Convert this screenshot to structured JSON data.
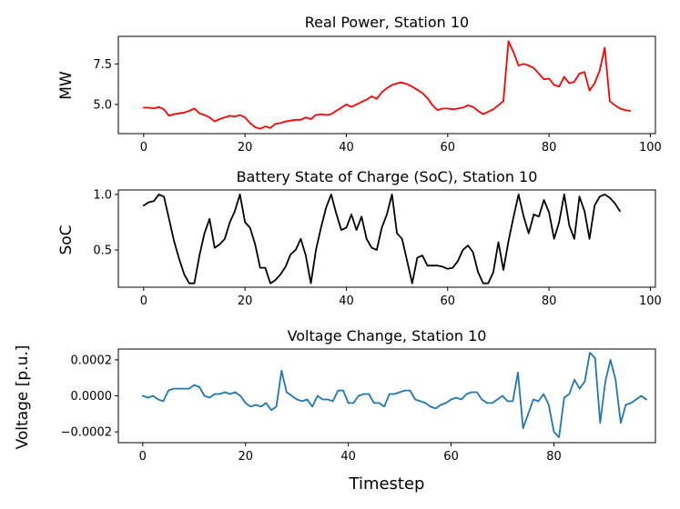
{
  "chart_data": [
    {
      "type": "line",
      "title": "Real Power, Station 10",
      "xlabel": "",
      "ylabel": "MW",
      "xlim": [
        -5,
        101
      ],
      "ylim": [
        3.2,
        9.2
      ],
      "xticks": [
        0,
        20,
        40,
        60,
        80,
        100
      ],
      "xtick_labels": [
        "0",
        "20",
        "40",
        "60",
        "80",
        "100"
      ],
      "yticks": [
        5.0,
        7.5
      ],
      "ytick_labels": [
        "5.0",
        "7.5"
      ],
      "grid": false,
      "color": "#ff0000",
      "x_start": 0,
      "y": [
        4.8,
        4.8,
        4.75,
        4.85,
        4.7,
        4.3,
        4.4,
        4.45,
        4.5,
        4.6,
        4.75,
        4.45,
        4.35,
        4.2,
        3.95,
        4.1,
        4.2,
        4.3,
        4.25,
        4.35,
        4.2,
        3.85,
        3.6,
        3.5,
        3.65,
        3.55,
        3.8,
        3.85,
        3.95,
        4.0,
        4.05,
        4.05,
        4.2,
        4.1,
        4.35,
        4.4,
        4.35,
        4.4,
        4.6,
        4.8,
        5.0,
        4.85,
        5.0,
        5.15,
        5.3,
        5.5,
        5.35,
        5.75,
        6.0,
        6.2,
        6.3,
        6.35,
        6.25,
        6.1,
        5.9,
        5.7,
        5.4,
        4.95,
        4.65,
        4.75,
        4.75,
        4.7,
        4.75,
        4.8,
        4.95,
        4.85,
        4.6,
        4.4,
        4.55,
        4.7,
        4.95,
        5.2,
        8.9,
        8.2,
        7.4,
        7.5,
        7.4,
        7.25,
        6.9,
        6.55,
        6.6,
        6.2,
        6.1,
        6.7,
        6.3,
        6.4,
        6.9,
        7.0,
        5.85,
        6.3,
        7.1,
        8.5,
        5.2,
        4.95,
        4.75,
        4.65,
        4.6
      ]
    },
    {
      "type": "line",
      "title": "Battery State of Charge (SoC), Station 10",
      "xlabel": "",
      "ylabel": "SoC",
      "xlim": [
        -5,
        101
      ],
      "ylim": [
        0.165,
        1.04
      ],
      "xticks": [
        0,
        20,
        40,
        60,
        80,
        100
      ],
      "xtick_labels": [
        "0",
        "20",
        "40",
        "60",
        "80",
        "100"
      ],
      "yticks": [
        0.5,
        1.0
      ],
      "ytick_labels": [
        "0.5",
        "1.0"
      ],
      "grid": false,
      "color": "#000000",
      "x_start": 0,
      "y": [
        0.9,
        0.93,
        0.94,
        1.0,
        0.98,
        0.78,
        0.58,
        0.42,
        0.28,
        0.2,
        0.2,
        0.45,
        0.65,
        0.78,
        0.52,
        0.55,
        0.6,
        0.75,
        0.85,
        1.0,
        0.75,
        0.7,
        0.55,
        0.34,
        0.34,
        0.2,
        0.23,
        0.28,
        0.35,
        0.46,
        0.5,
        0.6,
        0.45,
        0.2,
        0.5,
        0.7,
        0.88,
        1.0,
        0.83,
        0.68,
        0.7,
        0.82,
        0.68,
        0.8,
        0.6,
        0.52,
        0.5,
        0.7,
        0.82,
        1.0,
        0.65,
        0.6,
        0.4,
        0.2,
        0.43,
        0.45,
        0.36,
        0.36,
        0.36,
        0.35,
        0.33,
        0.34,
        0.4,
        0.5,
        0.54,
        0.48,
        0.3,
        0.2,
        0.2,
        0.3,
        0.57,
        0.32,
        0.58,
        0.8,
        1.0,
        0.8,
        0.65,
        0.82,
        0.8,
        0.95,
        0.84,
        0.6,
        0.75,
        1.0,
        0.72,
        0.6,
        0.98,
        0.85,
        0.6,
        0.9,
        0.98,
        1.0,
        0.97,
        0.92,
        0.85
      ]
    },
    {
      "type": "line",
      "title": "Voltage Change, Station 10",
      "xlabel": "Timestep",
      "ylabel": "Voltage [p.u.]",
      "xlim": [
        -4.75,
        99.75
      ],
      "ylim": [
        -0.00026,
        0.00026
      ],
      "xticks": [
        0,
        20,
        40,
        60,
        80
      ],
      "xtick_labels": [
        "0",
        "20",
        "40",
        "60",
        "80"
      ],
      "yticks": [
        -0.0002,
        0.0,
        0.0002
      ],
      "ytick_labels": [
        "−0.0002",
        "0.0000",
        "0.0002"
      ],
      "grid": false,
      "color": "#1f77b4",
      "x_start": 0,
      "y": [
        0.0,
        -1e-05,
        0.0,
        -2e-05,
        -3e-05,
        3e-05,
        4e-05,
        4e-05,
        4e-05,
        4e-05,
        6e-05,
        5e-05,
        0.0,
        -1e-05,
        1e-05,
        1e-05,
        2e-05,
        1e-05,
        2e-05,
        0.0,
        -4e-05,
        -6e-05,
        -5e-05,
        -6e-05,
        -4e-05,
        -8e-05,
        -6e-05,
        0.00014,
        2e-05,
        0.0,
        -2e-05,
        -3e-05,
        -2e-05,
        -6e-05,
        0.0,
        -2e-05,
        -2e-05,
        -3e-05,
        3e-05,
        3e-05,
        -4e-05,
        -4e-05,
        0.0,
        1e-05,
        1e-05,
        -4e-05,
        -4e-05,
        -6e-05,
        1e-05,
        1e-05,
        2e-05,
        3e-05,
        3e-05,
        -2e-05,
        -3e-05,
        -4e-05,
        -6e-05,
        -7e-05,
        -5e-05,
        -4e-05,
        -2e-05,
        -1e-05,
        -2e-05,
        1e-05,
        2e-05,
        2e-05,
        -2e-05,
        -4e-05,
        -4e-05,
        -2e-05,
        0.0,
        -3e-05,
        -3e-05,
        0.00013,
        -0.00018,
        -0.0001,
        -2e-05,
        -3e-05,
        1e-05,
        -5e-05,
        -0.0002,
        -0.00023,
        -1e-05,
        1e-05,
        9e-05,
        4e-05,
        8e-05,
        0.00024,
        0.00021,
        -0.00015,
        8e-05,
        0.0002,
        9e-05,
        -0.00015,
        -5e-05,
        -4e-05,
        -2e-05,
        0.0,
        -2e-05
      ]
    }
  ]
}
